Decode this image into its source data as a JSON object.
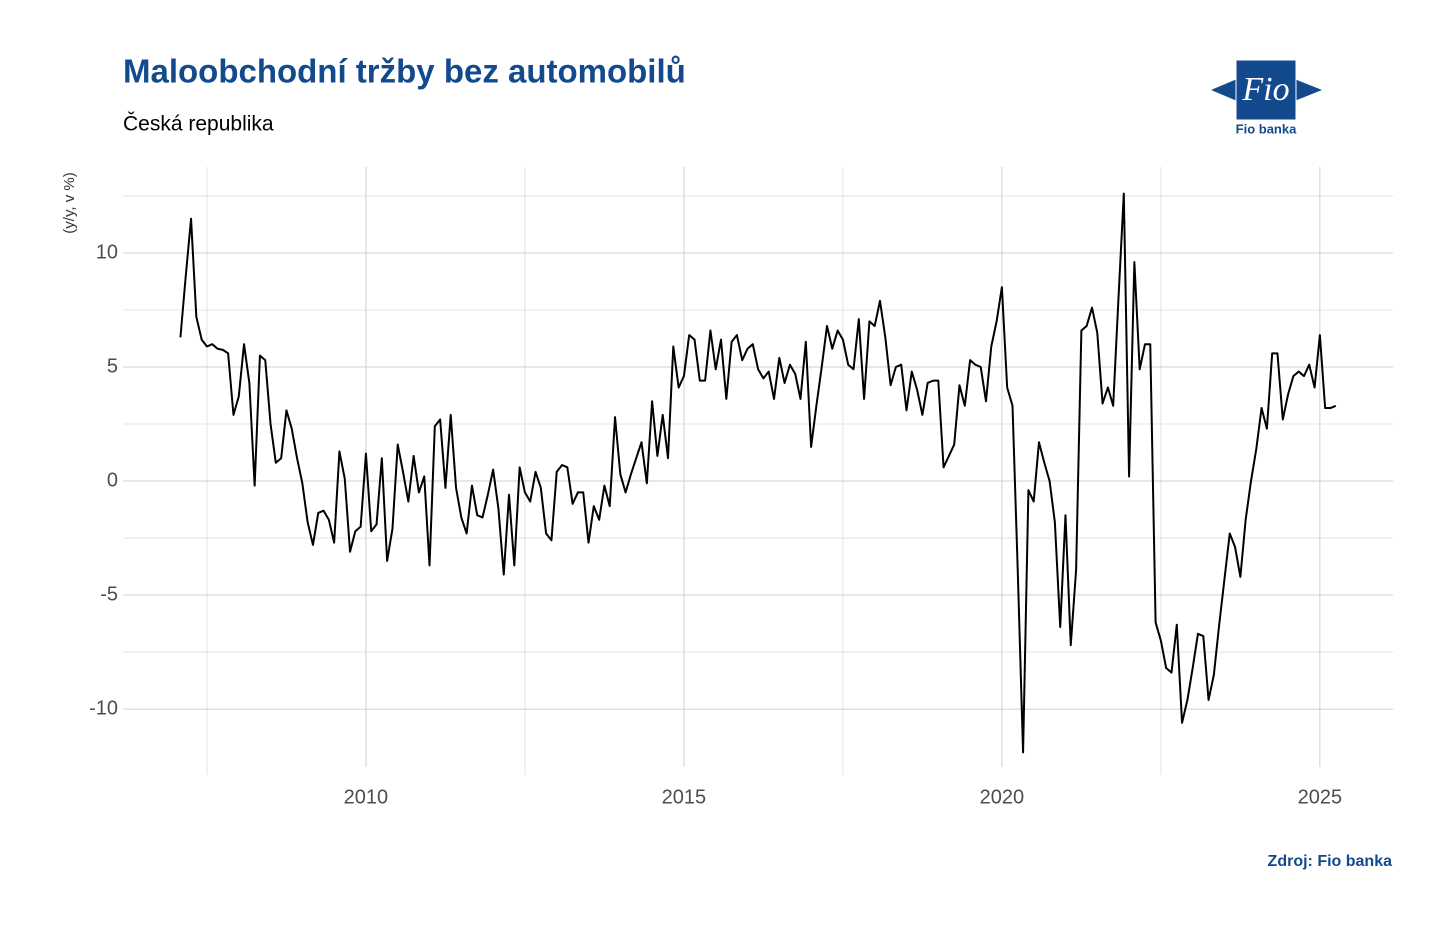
{
  "chart_data": {
    "type": "line",
    "title": "Maloobchodní tržby bez automobilů",
    "subtitle": "Česká republika",
    "y_label": "(y/y, v %)",
    "source": "Zdroj: Fio banka",
    "logo_text": "Fio",
    "logo_caption": "Fio banka",
    "color": "#000000",
    "grid": true,
    "xlim": [
      2006.18,
      2026.15
    ],
    "ylim": [
      -12.54,
      13.77
    ],
    "xticks": [
      2010,
      2015,
      2020,
      2025
    ],
    "yticks": [
      -10,
      -5,
      0,
      5,
      10
    ],
    "x_minor_ticks": [
      2007.5,
      2012.5,
      2017.5,
      2022.5
    ],
    "y_minor_ticks": [
      -7.5,
      -2.5,
      2.5,
      7.5,
      12.5
    ],
    "x": [
      2007.083,
      2007.167,
      2007.25,
      2007.333,
      2007.417,
      2007.5,
      2007.583,
      2007.667,
      2007.75,
      2007.833,
      2007.917,
      2008,
      2008.083,
      2008.167,
      2008.25,
      2008.333,
      2008.417,
      2008.5,
      2008.583,
      2008.667,
      2008.75,
      2008.833,
      2008.917,
      2009,
      2009.083,
      2009.167,
      2009.25,
      2009.333,
      2009.417,
      2009.5,
      2009.583,
      2009.667,
      2009.75,
      2009.833,
      2009.917,
      2010,
      2010.083,
      2010.167,
      2010.25,
      2010.333,
      2010.417,
      2010.5,
      2010.583,
      2010.667,
      2010.75,
      2010.833,
      2010.917,
      2011,
      2011.083,
      2011.167,
      2011.25,
      2011.333,
      2011.417,
      2011.5,
      2011.583,
      2011.667,
      2011.75,
      2011.833,
      2011.917,
      2012,
      2012.083,
      2012.167,
      2012.25,
      2012.333,
      2012.417,
      2012.5,
      2012.583,
      2012.667,
      2012.75,
      2012.833,
      2012.917,
      2013,
      2013.083,
      2013.167,
      2013.25,
      2013.333,
      2013.417,
      2013.5,
      2013.583,
      2013.667,
      2013.75,
      2013.833,
      2013.917,
      2014,
      2014.083,
      2014.167,
      2014.25,
      2014.333,
      2014.417,
      2014.5,
      2014.583,
      2014.667,
      2014.75,
      2014.833,
      2014.917,
      2015,
      2015.083,
      2015.167,
      2015.25,
      2015.333,
      2015.417,
      2015.5,
      2015.583,
      2015.667,
      2015.75,
      2015.833,
      2015.917,
      2016,
      2016.083,
      2016.167,
      2016.25,
      2016.333,
      2016.417,
      2016.5,
      2016.583,
      2016.667,
      2016.75,
      2016.833,
      2016.917,
      2017,
      2017.083,
      2017.167,
      2017.25,
      2017.333,
      2017.417,
      2017.5,
      2017.583,
      2017.667,
      2017.75,
      2017.833,
      2017.917,
      2018,
      2018.083,
      2018.167,
      2018.25,
      2018.333,
      2018.417,
      2018.5,
      2018.583,
      2018.667,
      2018.75,
      2018.833,
      2018.917,
      2019,
      2019.083,
      2019.167,
      2019.25,
      2019.333,
      2019.417,
      2019.5,
      2019.583,
      2019.667,
      2019.75,
      2019.833,
      2019.917,
      2020,
      2020.083,
      2020.167,
      2020.25,
      2020.333,
      2020.417,
      2020.5,
      2020.583,
      2020.667,
      2020.75,
      2020.833,
      2020.917,
      2021,
      2021.083,
      2021.167,
      2021.25,
      2021.333,
      2021.417,
      2021.5,
      2021.583,
      2021.667,
      2021.75,
      2021.833,
      2021.917,
      2022,
      2022.083,
      2022.167,
      2022.25,
      2022.333,
      2022.417,
      2022.5,
      2022.583,
      2022.667,
      2022.75,
      2022.833,
      2022.917,
      2023,
      2023.083,
      2023.167,
      2023.25,
      2023.333,
      2023.417,
      2023.5,
      2023.583,
      2023.667,
      2023.75,
      2023.833,
      2023.917,
      2024,
      2024.083,
      2024.167,
      2024.25,
      2024.333,
      2024.417,
      2024.5,
      2024.583,
      2024.667,
      2024.75,
      2024.833,
      2024.917,
      2025,
      2025.083,
      2025.167,
      2025.25
    ],
    "values": [
      6.3,
      9.0,
      11.5,
      7.2,
      6.2,
      5.9,
      6.0,
      5.8,
      5.75,
      5.6,
      2.9,
      3.7,
      6.0,
      4.3,
      -0.2,
      5.5,
      5.3,
      2.5,
      0.8,
      1.0,
      3.1,
      2.3,
      1.0,
      -0.1,
      -1.8,
      -2.8,
      -1.4,
      -1.3,
      -1.7,
      -2.7,
      1.3,
      0.1,
      -3.1,
      -2.2,
      -2.0,
      1.2,
      -2.2,
      -1.9,
      1.0,
      -3.5,
      -2.1,
      1.6,
      0.4,
      -0.9,
      1.1,
      -0.5,
      0.2,
      -3.7,
      2.4,
      2.7,
      -0.3,
      2.9,
      -0.3,
      -1.6,
      -2.3,
      -0.2,
      -1.5,
      -1.6,
      -0.6,
      0.5,
      -1.2,
      -4.1,
      -0.6,
      -3.7,
      0.6,
      -0.5,
      -0.9,
      0.4,
      -0.3,
      -2.3,
      -2.6,
      0.4,
      0.7,
      0.6,
      -1.0,
      -0.5,
      -0.5,
      -2.7,
      -1.1,
      -1.7,
      -0.2,
      -1.1,
      2.8,
      0.3,
      -0.5,
      0.3,
      1.0,
      1.7,
      -0.1,
      3.5,
      1.1,
      2.9,
      1.0,
      5.9,
      4.1,
      4.6,
      6.4,
      6.2,
      4.4,
      4.4,
      6.6,
      4.9,
      6.2,
      3.6,
      6.1,
      6.4,
      5.3,
      5.8,
      6.0,
      4.9,
      4.5,
      4.8,
      3.6,
      5.4,
      4.3,
      5.1,
      4.7,
      3.6,
      6.1,
      1.5,
      3.3,
      5.0,
      6.8,
      5.8,
      6.6,
      6.2,
      5.1,
      4.9,
      7.1,
      3.6,
      7.0,
      6.8,
      7.9,
      6.3,
      4.2,
      5.0,
      5.1,
      3.1,
      4.8,
      4.0,
      2.9,
      4.3,
      4.4,
      4.4,
      0.6,
      1.1,
      1.6,
      4.2,
      3.3,
      5.3,
      5.1,
      5.0,
      3.5,
      5.9,
      7.0,
      8.5,
      4.1,
      3.3,
      -4.0,
      -11.9,
      -0.4,
      -0.9,
      1.7,
      0.8,
      0.0,
      -1.8,
      -6.4,
      -1.5,
      -7.2,
      -3.9,
      6.6,
      6.8,
      7.6,
      6.5,
      3.4,
      4.1,
      3.3,
      8.0,
      12.6,
      0.2,
      9.6,
      4.9,
      6.0,
      6.0,
      -6.2,
      -7.0,
      -8.2,
      -8.4,
      -6.3,
      -10.6,
      -9.6,
      -8.2,
      -6.7,
      -6.8,
      -9.6,
      -8.5,
      -6.3,
      -4.3,
      -2.3,
      -2.9,
      -4.2,
      -1.7,
      0.0,
      1.4,
      3.2,
      2.3,
      5.6,
      5.6,
      2.7,
      3.8,
      4.6,
      4.8,
      4.6,
      5.1,
      4.1,
      6.4,
      3.2,
      3.2,
      3.3
    ]
  }
}
